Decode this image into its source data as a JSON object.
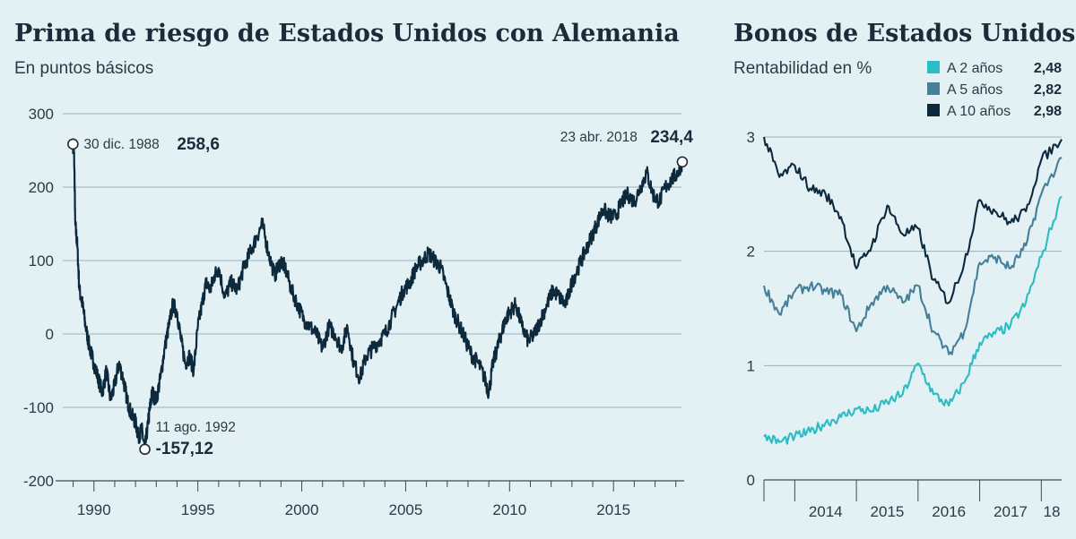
{
  "chart_data": [
    {
      "type": "line",
      "title": "Prima de riesgo de Estados Unidos con Alemania",
      "subtitle": "En puntos básicos",
      "ylim": [
        -200,
        300
      ],
      "yticks": [
        "300",
        "200",
        "100",
        "0",
        "-100",
        "-200"
      ],
      "xlim": [
        1988.5,
        2018.4
      ],
      "xticks": [
        "1990",
        "1995",
        "2000",
        "2005",
        "2010",
        "2015"
      ],
      "grid": "horizontal",
      "color": "#0d2a3d",
      "series": [
        {
          "x": [
            1988.99,
            1989.05,
            1989.1,
            1989.2,
            1989.3,
            1989.45,
            1989.6,
            1989.8,
            1990.0,
            1990.2,
            1990.4,
            1990.6,
            1990.8,
            1991.0,
            1991.2,
            1991.4,
            1991.6,
            1991.8,
            1992.0,
            1992.15,
            1992.3,
            1992.45,
            1992.61,
            1992.7,
            1992.8,
            1993.0,
            1993.2,
            1993.4,
            1993.6,
            1993.8,
            1994.0,
            1994.2,
            1994.4,
            1994.6,
            1994.8,
            1995.0,
            1995.2,
            1995.4,
            1995.6,
            1995.8,
            1996.0,
            1996.3,
            1996.6,
            1996.9,
            1997.2,
            1997.5,
            1997.8,
            1998.1,
            1998.4,
            1998.7,
            1999.0,
            1999.2,
            1999.5,
            1999.8,
            2000.1,
            2000.4,
            2000.7,
            2001.0,
            2001.3,
            2001.6,
            2001.9,
            2002.2,
            2002.5,
            2002.8,
            2003.1,
            2003.4,
            2003.7,
            2004.0,
            2004.3,
            2004.6,
            2004.9,
            2005.2,
            2005.5,
            2005.8,
            2006.1,
            2006.4,
            2006.7,
            2007.0,
            2007.3,
            2007.6,
            2007.9,
            2008.2,
            2008.5,
            2008.8,
            2009.0,
            2009.2,
            2009.4,
            2009.6,
            2009.8,
            2010.0,
            2010.3,
            2010.6,
            2010.9,
            2011.2,
            2011.5,
            2011.8,
            2012.1,
            2012.4,
            2012.7,
            2013.0,
            2013.3,
            2013.6,
            2013.9,
            2014.2,
            2014.5,
            2014.8,
            2015.1,
            2015.4,
            2015.7,
            2016.0,
            2016.3,
            2016.6,
            2016.9,
            2017.2,
            2017.5,
            2017.8,
            2018.1,
            2018.31
          ],
          "y": [
            258.6,
            240,
            150,
            120,
            60,
            40,
            10,
            -20,
            -40,
            -60,
            -80,
            -50,
            -90,
            -70,
            -40,
            -60,
            -90,
            -110,
            -120,
            -140,
            -130,
            -157.12,
            -120,
            -100,
            -80,
            -90,
            -60,
            -20,
            10,
            40,
            30,
            -10,
            -40,
            -30,
            -50,
            10,
            40,
            70,
            60,
            80,
            90,
            50,
            70,
            60,
            90,
            110,
            130,
            150,
            110,
            80,
            100,
            90,
            60,
            40,
            20,
            10,
            0,
            -20,
            10,
            0,
            -20,
            10,
            -40,
            -60,
            -30,
            -20,
            -10,
            0,
            20,
            40,
            60,
            70,
            90,
            100,
            110,
            100,
            90,
            60,
            30,
            10,
            -10,
            -30,
            -40,
            -60,
            -80,
            -40,
            -20,
            0,
            20,
            30,
            40,
            10,
            -10,
            0,
            20,
            40,
            60,
            50,
            40,
            70,
            90,
            110,
            130,
            150,
            170,
            160,
            160,
            180,
            190,
            180,
            200,
            220,
            190,
            180,
            200,
            210,
            220,
            234.4
          ]
        }
      ],
      "annotations": [
        {
          "label": "30 dic. 1988",
          "value": "258,6"
        },
        {
          "label": "11 ago. 1992",
          "value": "-157,12"
        },
        {
          "label": "23 abr. 2018",
          "value": "234,4"
        }
      ]
    },
    {
      "type": "line",
      "title": "Bonos de Estados Unidos",
      "subtitle": "Rentabilidad en %",
      "ylim": [
        0,
        3
      ],
      "yticks": [
        "3",
        "2",
        "1",
        "0"
      ],
      "xlim": [
        2013.5,
        2018.33
      ],
      "xticks": [
        "2014",
        "2015",
        "2016",
        "2017",
        "18"
      ],
      "grid": "horizontal",
      "legend_position": "top-right",
      "series": [
        {
          "name": "A 2 años",
          "last": "2,48",
          "color": "#2bbcc4",
          "x": [
            2013.5,
            2013.75,
            2014.0,
            2014.25,
            2014.5,
            2014.75,
            2015.0,
            2015.25,
            2015.5,
            2015.75,
            2016.0,
            2016.25,
            2016.5,
            2016.75,
            2017.0,
            2017.25,
            2017.5,
            2017.75,
            2018.0,
            2018.33
          ],
          "y": [
            0.38,
            0.33,
            0.38,
            0.42,
            0.5,
            0.55,
            0.62,
            0.6,
            0.68,
            0.75,
            1.02,
            0.75,
            0.65,
            0.85,
            1.2,
            1.28,
            1.35,
            1.55,
            1.95,
            2.48
          ]
        },
        {
          "name": "A 5 años",
          "last": "2,82",
          "color": "#467f9a",
          "x": [
            2013.5,
            2013.75,
            2014.0,
            2014.25,
            2014.5,
            2014.75,
            2015.0,
            2015.25,
            2015.5,
            2015.75,
            2016.0,
            2016.25,
            2016.5,
            2016.75,
            2017.0,
            2017.25,
            2017.5,
            2017.75,
            2018.0,
            2018.33
          ],
          "y": [
            1.7,
            1.45,
            1.65,
            1.7,
            1.65,
            1.62,
            1.3,
            1.55,
            1.7,
            1.55,
            1.7,
            1.3,
            1.1,
            1.3,
            1.9,
            1.95,
            1.85,
            2.05,
            2.5,
            2.82
          ]
        },
        {
          "name": "A 10 años",
          "last": "2,98",
          "color": "#0d2a3d",
          "x": [
            2013.5,
            2013.75,
            2014.0,
            2014.25,
            2014.5,
            2014.75,
            2015.0,
            2015.25,
            2015.5,
            2015.75,
            2016.0,
            2016.25,
            2016.5,
            2016.75,
            2017.0,
            2017.25,
            2017.5,
            2017.75,
            2018.0,
            2018.33
          ],
          "y": [
            3.0,
            2.65,
            2.75,
            2.55,
            2.5,
            2.3,
            1.85,
            2.05,
            2.4,
            2.15,
            2.2,
            1.75,
            1.55,
            1.9,
            2.45,
            2.35,
            2.25,
            2.35,
            2.8,
            2.98
          ]
        }
      ]
    }
  ]
}
